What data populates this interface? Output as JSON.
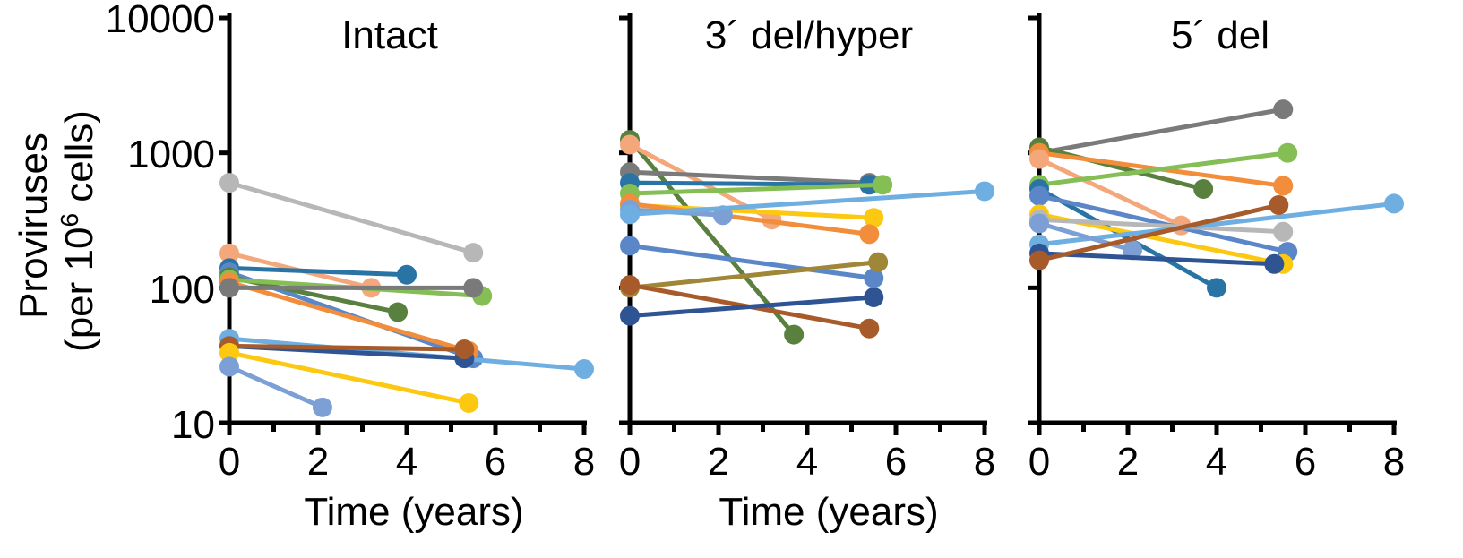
{
  "chart_data": [
    {
      "type": "line",
      "title": "Intact",
      "xlabel": "Time (years)",
      "ylabel": "Proviruses",
      "ylabel_line2_pre": "(per 10",
      "ylabel_line2_sup": "6",
      "ylabel_line2_post": " cells)",
      "x_ticks": [
        "0",
        "2",
        "4",
        "6",
        "8"
      ],
      "y_ticks": [
        "10",
        "100",
        "1000",
        "10000"
      ],
      "xlim": [
        0,
        8
      ],
      "ylim": [
        10,
        10000
      ],
      "yscale": "log",
      "series": [
        {
          "color": "#b7b7b7",
          "points": [
            [
              0,
              600
            ],
            [
              5.5,
              182
            ]
          ]
        },
        {
          "color": "#f4a77b",
          "points": [
            [
              0,
              180
            ],
            [
              3.2,
              100
            ]
          ]
        },
        {
          "color": "#2a73a5",
          "points": [
            [
              0,
              140
            ],
            [
              4.0,
              125
            ]
          ]
        },
        {
          "color": "#5b87c8",
          "points": [
            [
              0,
              130
            ],
            [
              5.5,
              30
            ]
          ]
        },
        {
          "color": "#59803f",
          "points": [
            [
              0,
              120
            ],
            [
              3.8,
              66
            ]
          ]
        },
        {
          "color": "#84be55",
          "points": [
            [
              0,
              115
            ],
            [
              5.7,
              87
            ]
          ]
        },
        {
          "color": "#f18d3b",
          "points": [
            [
              0,
              110
            ],
            [
              5.4,
              34
            ]
          ]
        },
        {
          "color": "#7a7a7a",
          "points": [
            [
              0,
              100
            ],
            [
              5.5,
              100
            ]
          ]
        },
        {
          "color": "#6eaee1",
          "points": [
            [
              0,
              42
            ],
            [
              8.0,
              25
            ]
          ]
        },
        {
          "color": "#2f5494",
          "points": [
            [
              0,
              37
            ],
            [
              5.3,
              30
            ]
          ]
        },
        {
          "color": "#a85b2a",
          "points": [
            [
              0,
              37
            ],
            [
              5.3,
              35
            ]
          ]
        },
        {
          "color": "#fcc812",
          "points": [
            [
              0,
              33
            ],
            [
              5.4,
              14
            ]
          ]
        },
        {
          "color": "#7ca0d6",
          "points": [
            [
              0,
              26
            ],
            [
              2.1,
              13
            ]
          ]
        }
      ]
    },
    {
      "type": "line",
      "title": "3´ del/hyper",
      "xlabel": "Time (years)",
      "x_ticks": [
        "0",
        "2",
        "4",
        "6",
        "8"
      ],
      "xlim": [
        0,
        8
      ],
      "ylim": [
        10,
        10000
      ],
      "yscale": "log",
      "series": [
        {
          "color": "#59803f",
          "points": [
            [
              0,
              1250
            ],
            [
              3.7,
              45
            ]
          ]
        },
        {
          "color": "#f4a77b",
          "points": [
            [
              0,
              1150
            ],
            [
              3.2,
              320
            ]
          ]
        },
        {
          "color": "#7a7a7a",
          "points": [
            [
              0,
              720
            ],
            [
              5.4,
              600
            ]
          ]
        },
        {
          "color": "#2a73a5",
          "points": [
            [
              0,
              600
            ],
            [
              5.4,
              580
            ]
          ]
        },
        {
          "color": "#84be55",
          "points": [
            [
              0,
              500
            ],
            [
              5.7,
              580
            ]
          ]
        },
        {
          "color": "#fcc812",
          "points": [
            [
              0,
              410
            ],
            [
              5.5,
              330
            ]
          ]
        },
        {
          "color": "#f18d3b",
          "points": [
            [
              0,
              420
            ],
            [
              5.4,
              250
            ]
          ]
        },
        {
          "color": "#7ca0d6",
          "points": [
            [
              0,
              380
            ],
            [
              2.1,
              345
            ]
          ]
        },
        {
          "color": "#6eaee1",
          "points": [
            [
              0,
              350
            ],
            [
              8.0,
              520
            ]
          ]
        },
        {
          "color": "#5b87c8",
          "points": [
            [
              0,
              205
            ],
            [
              5.5,
              118
            ]
          ]
        },
        {
          "color": "#a08738",
          "points": [
            [
              0,
              100
            ],
            [
              5.6,
              155
            ]
          ]
        },
        {
          "color": "#a85b2a",
          "points": [
            [
              0,
              105
            ],
            [
              5.4,
              50
            ]
          ]
        },
        {
          "color": "#2f5494",
          "points": [
            [
              0,
              62
            ],
            [
              5.5,
              85
            ]
          ]
        }
      ]
    },
    {
      "type": "line",
      "title": "5´ del",
      "xlabel": "",
      "x_ticks": [
        "0",
        "2",
        "4",
        "6",
        "8"
      ],
      "xlim": [
        0,
        8
      ],
      "ylim": [
        10,
        10000
      ],
      "yscale": "log",
      "series": [
        {
          "color": "#7a7a7a",
          "points": [
            [
              0,
              1000
            ],
            [
              5.5,
              2100
            ]
          ]
        },
        {
          "color": "#59803f",
          "points": [
            [
              0,
              1100
            ],
            [
              3.7,
              540
            ]
          ]
        },
        {
          "color": "#f18d3b",
          "points": [
            [
              0,
              1000
            ],
            [
              5.5,
              570
            ]
          ]
        },
        {
          "color": "#f4a77b",
          "points": [
            [
              0,
              900
            ],
            [
              3.2,
              290
            ]
          ]
        },
        {
          "color": "#84be55",
          "points": [
            [
              0,
              580
            ],
            [
              5.6,
              1000
            ]
          ]
        },
        {
          "color": "#2a73a5",
          "points": [
            [
              0,
              540
            ],
            [
              4.0,
              100
            ]
          ]
        },
        {
          "color": "#5b87c8",
          "points": [
            [
              0,
              480
            ],
            [
              5.6,
              185
            ]
          ]
        },
        {
          "color": "#fcc812",
          "points": [
            [
              0,
              350
            ],
            [
              5.5,
              150
            ]
          ]
        },
        {
          "color": "#b7b7b7",
          "points": [
            [
              0,
              320
            ],
            [
              5.5,
              260
            ]
          ]
        },
        {
          "color": "#6eaee1",
          "points": [
            [
              0,
              210
            ],
            [
              8.0,
              420
            ]
          ]
        },
        {
          "color": "#7ca0d6",
          "points": [
            [
              0,
              300
            ],
            [
              2.1,
              190
            ]
          ]
        },
        {
          "color": "#2f5494",
          "points": [
            [
              0,
              180
            ],
            [
              5.3,
              150
            ]
          ]
        },
        {
          "color": "#a85b2a",
          "points": [
            [
              0,
              160
            ],
            [
              5.4,
              410
            ]
          ]
        }
      ]
    }
  ]
}
